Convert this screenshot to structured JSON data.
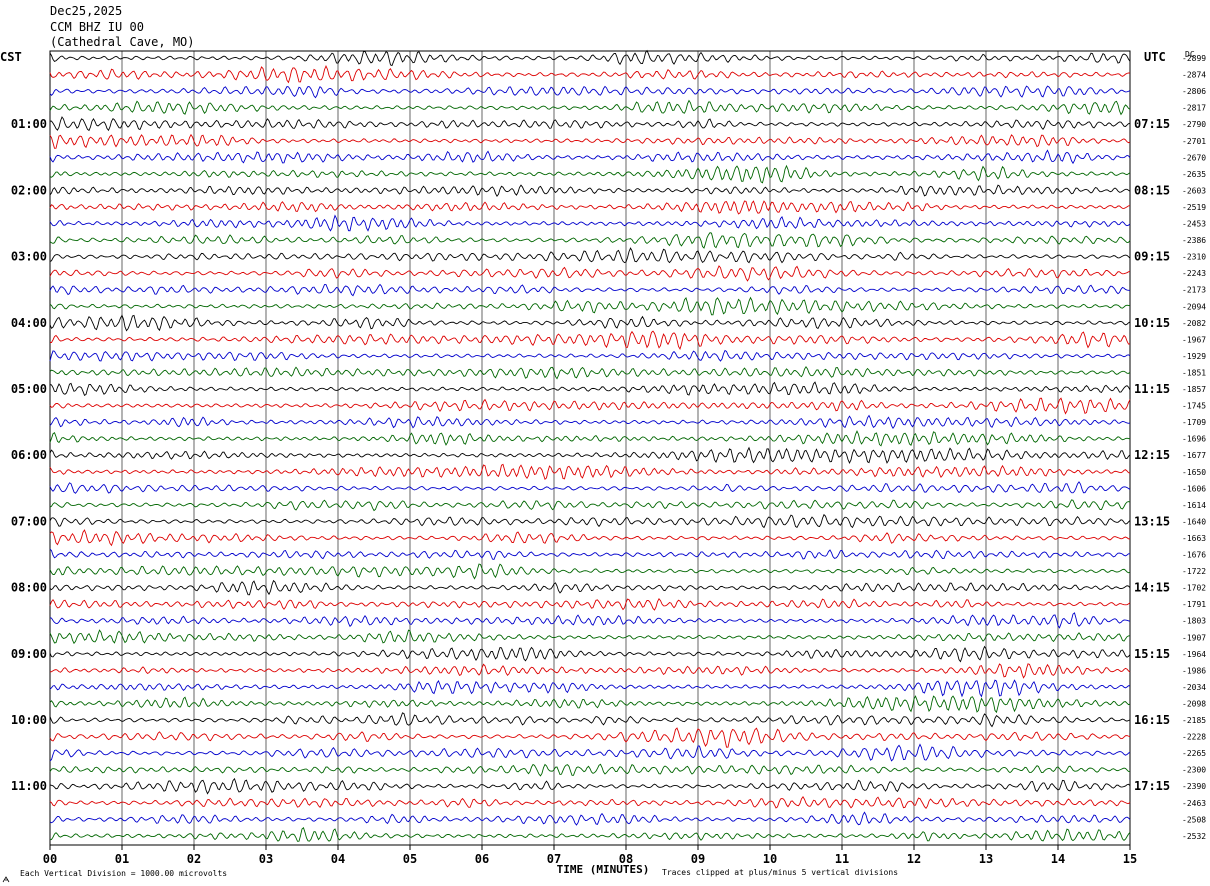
{
  "header": {
    "date": "Dec25,2025",
    "station": "CCM BHZ IU 00",
    "location": "(Cathedral Cave, MO)"
  },
  "footer": {
    "scale_note": "Each Vertical Division = 1000.00 microvolts",
    "clip_note": "Traces clipped at plus/minus 5 vertical divisions"
  },
  "chart_data": {
    "type": "line",
    "title": "CCM BHZ IU 00 (Cathedral Cave, MO)",
    "xlabel": "TIME (MINUTES)",
    "left_label": "CST",
    "right_label": "UTC",
    "dc_label": "DC",
    "xlim": [
      0,
      15
    ],
    "x_ticks": [
      "00",
      "01",
      "02",
      "03",
      "04",
      "05",
      "06",
      "07",
      "08",
      "09",
      "10",
      "11",
      "12",
      "13",
      "14",
      "15"
    ],
    "trace_minutes": 15,
    "rows": 48,
    "trace_colors": [
      "#000000",
      "#dd0000",
      "#0000cc",
      "#006600"
    ],
    "cst_hour_labels": [
      "01:00",
      "02:00",
      "03:00",
      "04:00",
      "05:00",
      "06:00",
      "07:00",
      "08:00",
      "09:00",
      "10:00",
      "11:00"
    ],
    "utc_hour_labels": [
      "07:15",
      "08:15",
      "09:15",
      "10:15",
      "11:15",
      "12:15",
      "13:15",
      "14:15",
      "15:15",
      "16:15",
      "17:15"
    ],
    "hour_label_first_row": 4,
    "hour_label_every": 4,
    "dc_offsets": [
      "-2899",
      "-2874",
      "-2806",
      "-2817",
      "-2790",
      "-2701",
      "-2670",
      "-2635",
      "-2603",
      "-2519",
      "-2453",
      "-2386",
      "-2310",
      "-2243",
      "-2173",
      "-2094",
      "-2082",
      "-1967",
      "-1929",
      "-1851",
      "-1857",
      "-1745",
      "-1709",
      "-1696",
      "-1677",
      "-1650",
      "-1606",
      "-1614",
      "-1640",
      "-1663",
      "-1676",
      "-1722",
      "-1702",
      "-1791",
      "-1803",
      "-1907",
      "-1964",
      "-1986",
      "-2034",
      "-2098",
      "-2185",
      "-2228",
      "-2265",
      "-2300",
      "-2390",
      "-2463",
      "-2508",
      "-2532"
    ],
    "grid": true
  }
}
